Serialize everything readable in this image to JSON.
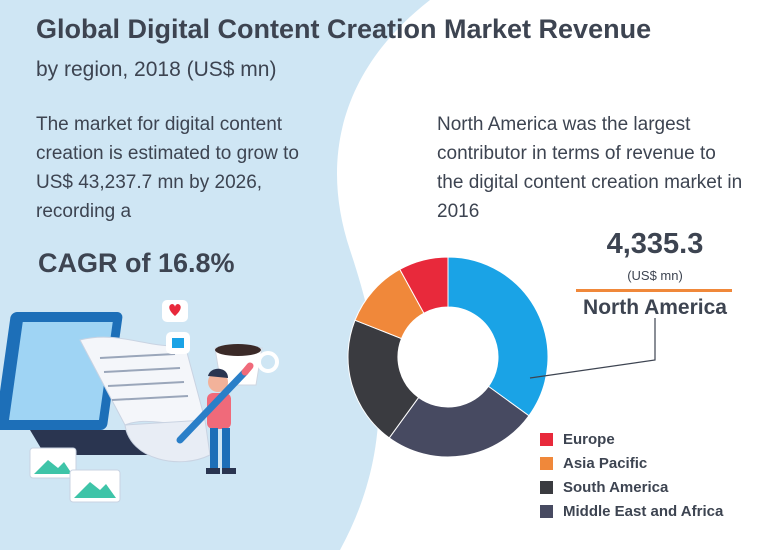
{
  "header": {
    "title": "Global Digital Content Creation Market Revenue",
    "subtitle": "by region, 2018 (US$ mn)"
  },
  "left_text": "The market for digital content creation is estimated to grow to US$ 43,237.7 mn by 2026, recording a",
  "cagr_text": "CAGR of 16.8%",
  "right_text": "North America was the largest contributor in terms of revenue to the digital content creation market in 2016",
  "callout": {
    "value": "4,335.3",
    "unit": "(US$ mn)",
    "label": "North America",
    "accent_color": "#f0883a"
  },
  "chart_data": {
    "type": "pie",
    "donut": true,
    "title": "",
    "categories": [
      "North America",
      "Middle East and Africa",
      "South America",
      "Asia Pacific",
      "Europe"
    ],
    "values": [
      35,
      25,
      21,
      11,
      8
    ],
    "unit": "percent share (estimated)",
    "colors": [
      "#1aa3e6",
      "#474a61",
      "#3a3b40",
      "#f0883a",
      "#e8293b"
    ],
    "legend_placement": "bottom-right",
    "legend": [
      {
        "label": "Europe",
        "color": "#e8293b"
      },
      {
        "label": "Asia Pacific",
        "color": "#f0883a"
      },
      {
        "label": "South America",
        "color": "#3a3b40"
      },
      {
        "label": "Middle East and Africa",
        "color": "#474a61"
      }
    ]
  },
  "illustration": {
    "icons": [
      "heart-icon",
      "thumbs-up-icon",
      "coffee-cup-icon",
      "image-icon",
      "person-icon",
      "laptop-icon",
      "pencil-icon"
    ]
  }
}
